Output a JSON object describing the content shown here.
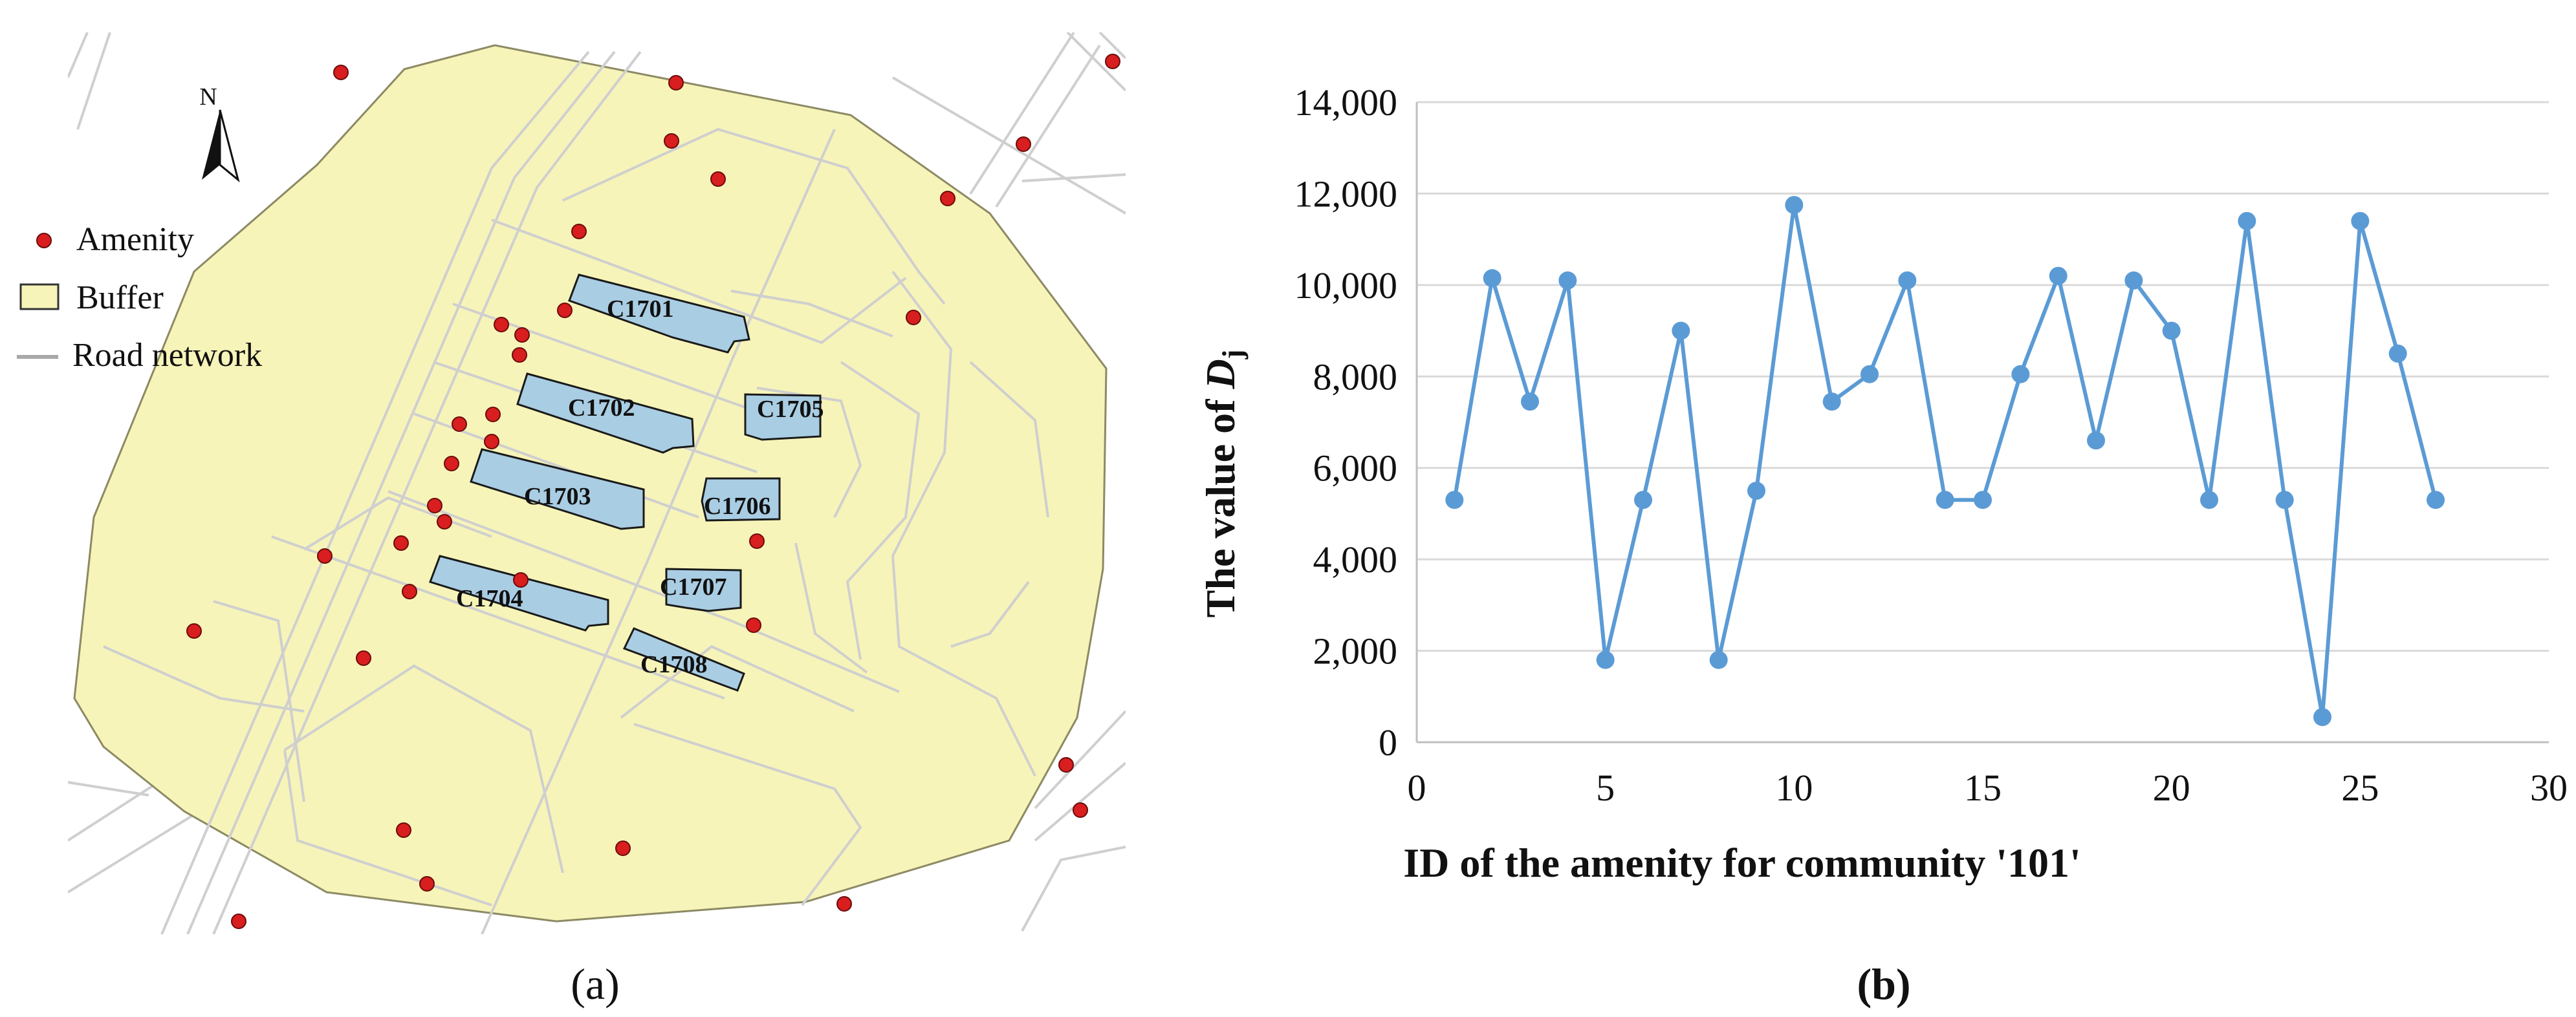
{
  "map": {
    "north_label": "N",
    "legend": {
      "amenity": "Amenity",
      "buffer": "Buffer",
      "road": "Road network"
    },
    "buildings": [
      "C1701",
      "C1702",
      "C1703",
      "C1704",
      "C1705",
      "C1706",
      "C1707",
      "C1708"
    ],
    "panel_label": "(a)",
    "colors": {
      "buffer": "#f7f4b9",
      "building": "#a9cde3",
      "amenity": "#d81e1e",
      "road": "#cfcfcf"
    }
  },
  "chart_data": {
    "type": "line",
    "xlabel": "ID of the amenity for community '101'",
    "ylabel_prefix": "The value of ",
    "ylabel_symbol": "D",
    "ylabel_subscript": "j",
    "xlim": [
      0,
      30
    ],
    "ylim": [
      0,
      14000
    ],
    "xticks": [
      0,
      5,
      10,
      15,
      20,
      25,
      30
    ],
    "yticks": [
      0,
      2000,
      4000,
      6000,
      8000,
      10000,
      12000,
      14000
    ],
    "xtick_labels": [
      "0",
      "5",
      "10",
      "15",
      "20",
      "25",
      "30"
    ],
    "ytick_labels": [
      "0",
      "2,000",
      "4,000",
      "6,000",
      "8,000",
      "10,000",
      "12,000",
      "14,000"
    ],
    "grid": true,
    "series": [
      {
        "color": "#5b9bd5",
        "x": [
          1,
          2,
          3,
          4,
          5,
          6,
          7,
          8,
          9,
          10,
          11,
          12,
          13,
          14,
          15,
          16,
          17,
          18,
          19,
          20,
          21,
          22,
          23,
          24,
          25,
          26,
          27
        ],
        "y": [
          5300,
          10150,
          7450,
          10100,
          1800,
          5300,
          9000,
          1800,
          5500,
          11750,
          7450,
          8050,
          10100,
          5300,
          5300,
          8050,
          10200,
          6600,
          10100,
          9000,
          5300,
          11400,
          5300,
          550,
          11400,
          8500,
          5300
        ]
      }
    ],
    "panel_label": "(b)"
  }
}
